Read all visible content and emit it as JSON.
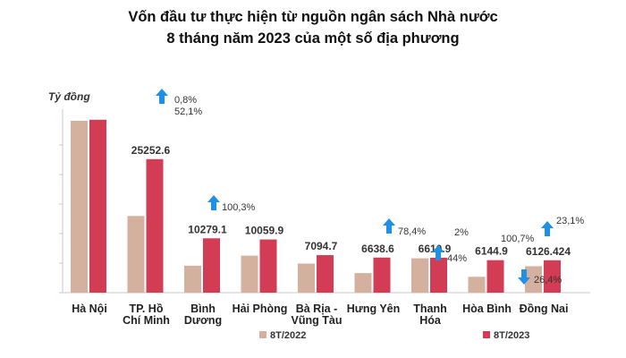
{
  "title_line1": "Vốn đầu tư thực hiện từ nguồn ngân sách Nhà nước",
  "title_line2": "8 tháng năm 2023 của một số địa phương",
  "colors": {
    "s2022": "#D4B09E",
    "s2023": "#D23C55",
    "arrow": "#1E90E6",
    "axis": "#C9C9C9"
  },
  "chart_data": {
    "type": "bar",
    "ylabel": "Tỷ đồng",
    "ylim": [
      0,
      33000
    ],
    "grid": false,
    "legend_position": "bottom",
    "categories": [
      [
        "Hà Nội"
      ],
      [
        "TP. Hồ",
        "Chí Minh"
      ],
      [
        "Bình",
        "Dương"
      ],
      [
        "Hải Phòng"
      ],
      [
        "Bà Rịa -",
        "Vũng Tàu"
      ],
      [
        "Hưng Yên"
      ],
      [
        "Thanh",
        "Hóa"
      ],
      [
        "Hòa Bình"
      ],
      [
        "Đồng Nai"
      ]
    ],
    "series": [
      {
        "name": "8T/2022",
        "values": [
          32500,
          14500,
          5100,
          7000,
          5500,
          3700,
          6500,
          3000,
          5000
        ]
      },
      {
        "name": "8T/2023",
        "values": [
          32700,
          25252.6,
          10279.1,
          10059.9,
          7094.7,
          6638.6,
          6610.9,
          6144.9,
          6126.424
        ]
      }
    ],
    "value_labels": [
      "",
      "25252.6",
      "10279.1",
      "10059.9",
      "7094.7",
      "6638.6",
      "6610.9",
      "6144.9",
      "6126.424"
    ],
    "annotations": [
      {
        "text": "0,8%",
        "category": 1,
        "arrow": "up"
      },
      {
        "text": "52,1%",
        "category": 1,
        "arrow": ""
      },
      {
        "text": "100,3%",
        "category": 2,
        "arrow": "up"
      },
      {
        "text": "78,4%",
        "category": 5,
        "arrow": "up"
      },
      {
        "text": "2%",
        "category": 6,
        "arrow": ""
      },
      {
        "text": "44%",
        "category": 6,
        "arrow": "up"
      },
      {
        "text": "100,7%",
        "category": 8,
        "arrow": "up"
      },
      {
        "text": "23,1%",
        "category": 8,
        "arrow": ""
      },
      {
        "text": "26,4%",
        "category": 8,
        "arrow": "down"
      }
    ]
  }
}
